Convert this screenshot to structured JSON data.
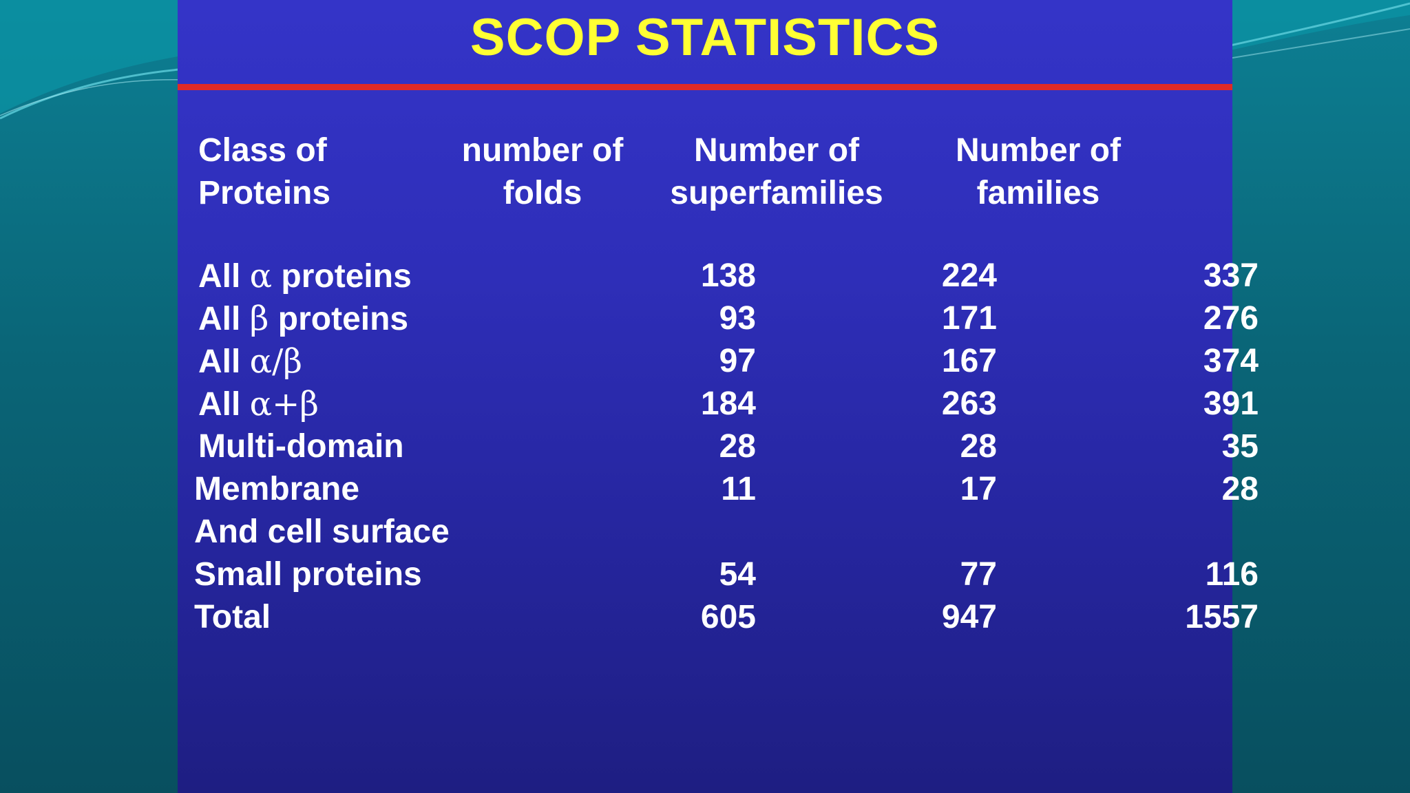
{
  "slide": {
    "title": "SCOP STATISTICS",
    "headers": [
      [
        "Class of",
        "Proteins"
      ],
      [
        "number of",
        "folds"
      ],
      [
        "Number of",
        "superfamilies"
      ],
      [
        "Number of",
        "families"
      ]
    ],
    "rows": [
      {
        "label_pre": "All ",
        "label_greek": "α",
        "label_post": " proteins",
        "folds": "138",
        "superfamilies": "224",
        "families": "337"
      },
      {
        "label_pre": "All ",
        "label_greek": "β",
        "label_post": " proteins",
        "folds": "93",
        "superfamilies": "171",
        "families": "276"
      },
      {
        "label_pre": "All ",
        "label_greek": "α/β",
        "label_post": "",
        "folds": "97",
        "superfamilies": "167",
        "families": "374"
      },
      {
        "label_pre": "All ",
        "label_greek": "α+β",
        "label_post": "",
        "folds": "184",
        "superfamilies": "263",
        "families": "391"
      },
      {
        "label_pre": "Multi-domain",
        "label_greek": "",
        "label_post": "",
        "folds": "28",
        "superfamilies": "28",
        "families": "35"
      },
      {
        "label_pre": "Membrane",
        "label_greek": "",
        "label_post": "",
        "folds": "11",
        "superfamilies": "17",
        "families": "28"
      },
      {
        "label_pre": "And cell surface",
        "label_greek": "",
        "label_post": "",
        "folds": "",
        "superfamilies": "",
        "families": ""
      },
      {
        "label_pre": "Small proteins",
        "label_greek": "",
        "label_post": "",
        "folds": "54",
        "superfamilies": "77",
        "families": "116"
      },
      {
        "label_pre": "Total",
        "label_greek": "",
        "label_post": "",
        "folds": "605",
        "superfamilies": "947",
        "families": "1557"
      }
    ]
  },
  "colors": {
    "title": "#ffff33",
    "rule": "#e02a25",
    "panel": "#2e2eb8",
    "frame": "#0a6577"
  }
}
